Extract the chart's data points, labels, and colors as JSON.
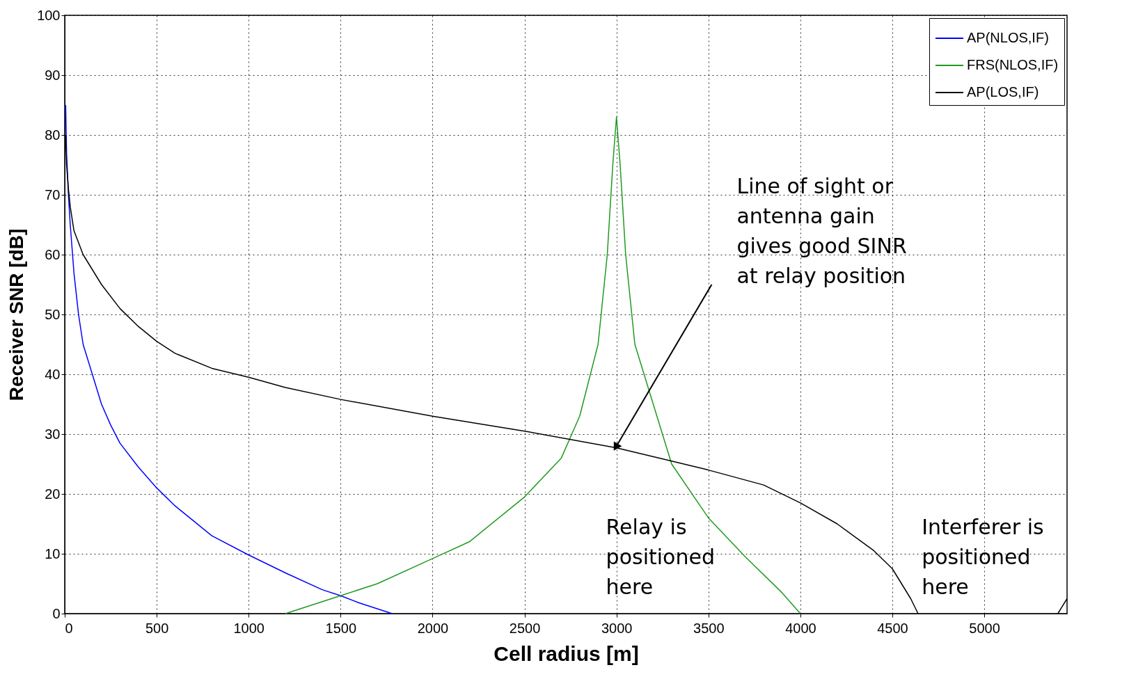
{
  "chart_data": {
    "type": "line",
    "xlabel": "Cell radius [m]",
    "ylabel": "Receiver SNR [dB]",
    "xlim": [
      0,
      5450
    ],
    "ylim": [
      0,
      100
    ],
    "xticks": [
      0,
      500,
      1000,
      1500,
      2000,
      2500,
      3000,
      3500,
      4000,
      4500,
      5000
    ],
    "yticks": [
      0,
      10,
      20,
      30,
      40,
      50,
      60,
      70,
      80,
      90,
      100
    ],
    "grid": true,
    "legend": "top right",
    "line_style": "solid",
    "series": [
      {
        "name": "AP(NLOS,IF)",
        "color": "#0000ff",
        "x": [
          5,
          10,
          20,
          30,
          50,
          75,
          100,
          150,
          200,
          250,
          300,
          400,
          500,
          600,
          700,
          800,
          1000,
          1200,
          1400,
          1500,
          1600,
          1780
        ],
        "values": [
          85,
          77,
          70,
          65,
          57,
          50,
          45,
          40,
          35,
          31.5,
          28.5,
          24.5,
          21,
          18,
          15.5,
          13,
          9.8,
          6.8,
          4,
          3,
          1.8,
          0
        ]
      },
      {
        "name": "FRS(NLOS,IF)",
        "color": "#1f9a1f",
        "x": [
          1200,
          1500,
          1700,
          2000,
          2200,
          2500,
          2700,
          2800,
          2900,
          2950,
          2980,
          3000,
          3020,
          3050,
          3100,
          3200,
          3300,
          3500,
          3700,
          3900,
          4000
        ],
        "values": [
          0,
          3,
          5,
          9.2,
          12,
          19.5,
          26,
          33,
          45,
          60,
          75,
          83,
          75,
          60,
          45,
          35,
          25,
          16,
          9.5,
          3.5,
          0
        ]
      },
      {
        "name": "AP(LOS,IF)",
        "color": "#000000",
        "x": [
          5,
          10,
          20,
          30,
          50,
          100,
          200,
          300,
          400,
          500,
          600,
          800,
          1000,
          1200,
          1500,
          2000,
          2500,
          3000,
          3300,
          3500,
          3800,
          4000,
          4200,
          4400,
          4500,
          4600,
          4640,
          5000,
          5400,
          5450
        ],
        "values": [
          80,
          75,
          71,
          68,
          64,
          60,
          55,
          51,
          48,
          45.5,
          43.5,
          41,
          39.5,
          37.8,
          35.8,
          33,
          30.5,
          27.7,
          25.5,
          24,
          21.5,
          18.5,
          15,
          10.5,
          7.5,
          2.5,
          0,
          null,
          0,
          2.5
        ]
      }
    ],
    "annotations": [
      {
        "text": "Line of sight or\nantenna gain\ngives good SINR\nat relay position",
        "x": 3000,
        "y": 28
      },
      "Relay is\npositioned\nhere",
      "Interferer is\npositioned\nhere"
    ]
  }
}
